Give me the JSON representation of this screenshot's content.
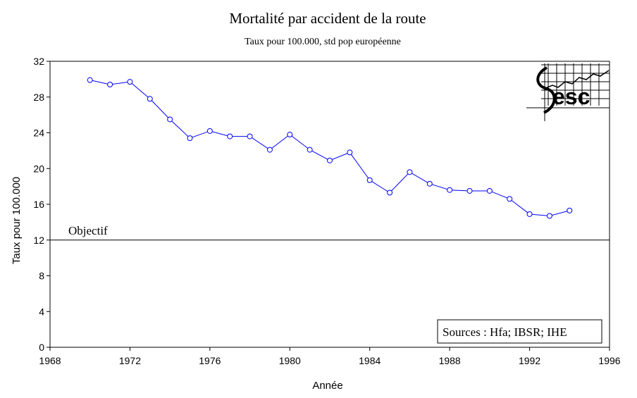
{
  "chart_data": {
    "type": "line",
    "title": "Mortalité par accident de la route",
    "subtitle": "Taux pour 100.000, std pop européenne",
    "xlabel": "Année",
    "ylabel": "Taux pour 100.000",
    "xlim": [
      1968,
      1996
    ],
    "ylim": [
      0,
      32
    ],
    "xticks": [
      1968,
      1972,
      1976,
      1980,
      1984,
      1988,
      1992,
      1996
    ],
    "yticks": [
      0,
      4,
      8,
      12,
      16,
      20,
      24,
      28,
      32
    ],
    "grid": false,
    "series": [
      {
        "color": "#0000ff",
        "x": [
          1970,
          1971,
          1972,
          1973,
          1974,
          1975,
          1976,
          1977,
          1978,
          1979,
          1980,
          1981,
          1982,
          1983,
          1984,
          1985,
          1986,
          1987,
          1988,
          1989,
          1990,
          1991,
          1992,
          1993,
          1994
        ],
        "y": [
          29.9,
          29.4,
          29.7,
          27.8,
          25.5,
          23.4,
          24.2,
          23.6,
          23.6,
          22.1,
          23.8,
          22.1,
          20.9,
          21.8,
          18.7,
          17.3,
          19.6,
          18.3,
          17.6,
          17.5,
          17.5,
          16.6,
          14.9,
          14.7,
          15.3
        ]
      }
    ],
    "reference_line": {
      "y": 12,
      "label": "Objectif"
    },
    "source_note": "Sources : Hfa; IBSR; IHE",
    "logo_text": "esc"
  }
}
